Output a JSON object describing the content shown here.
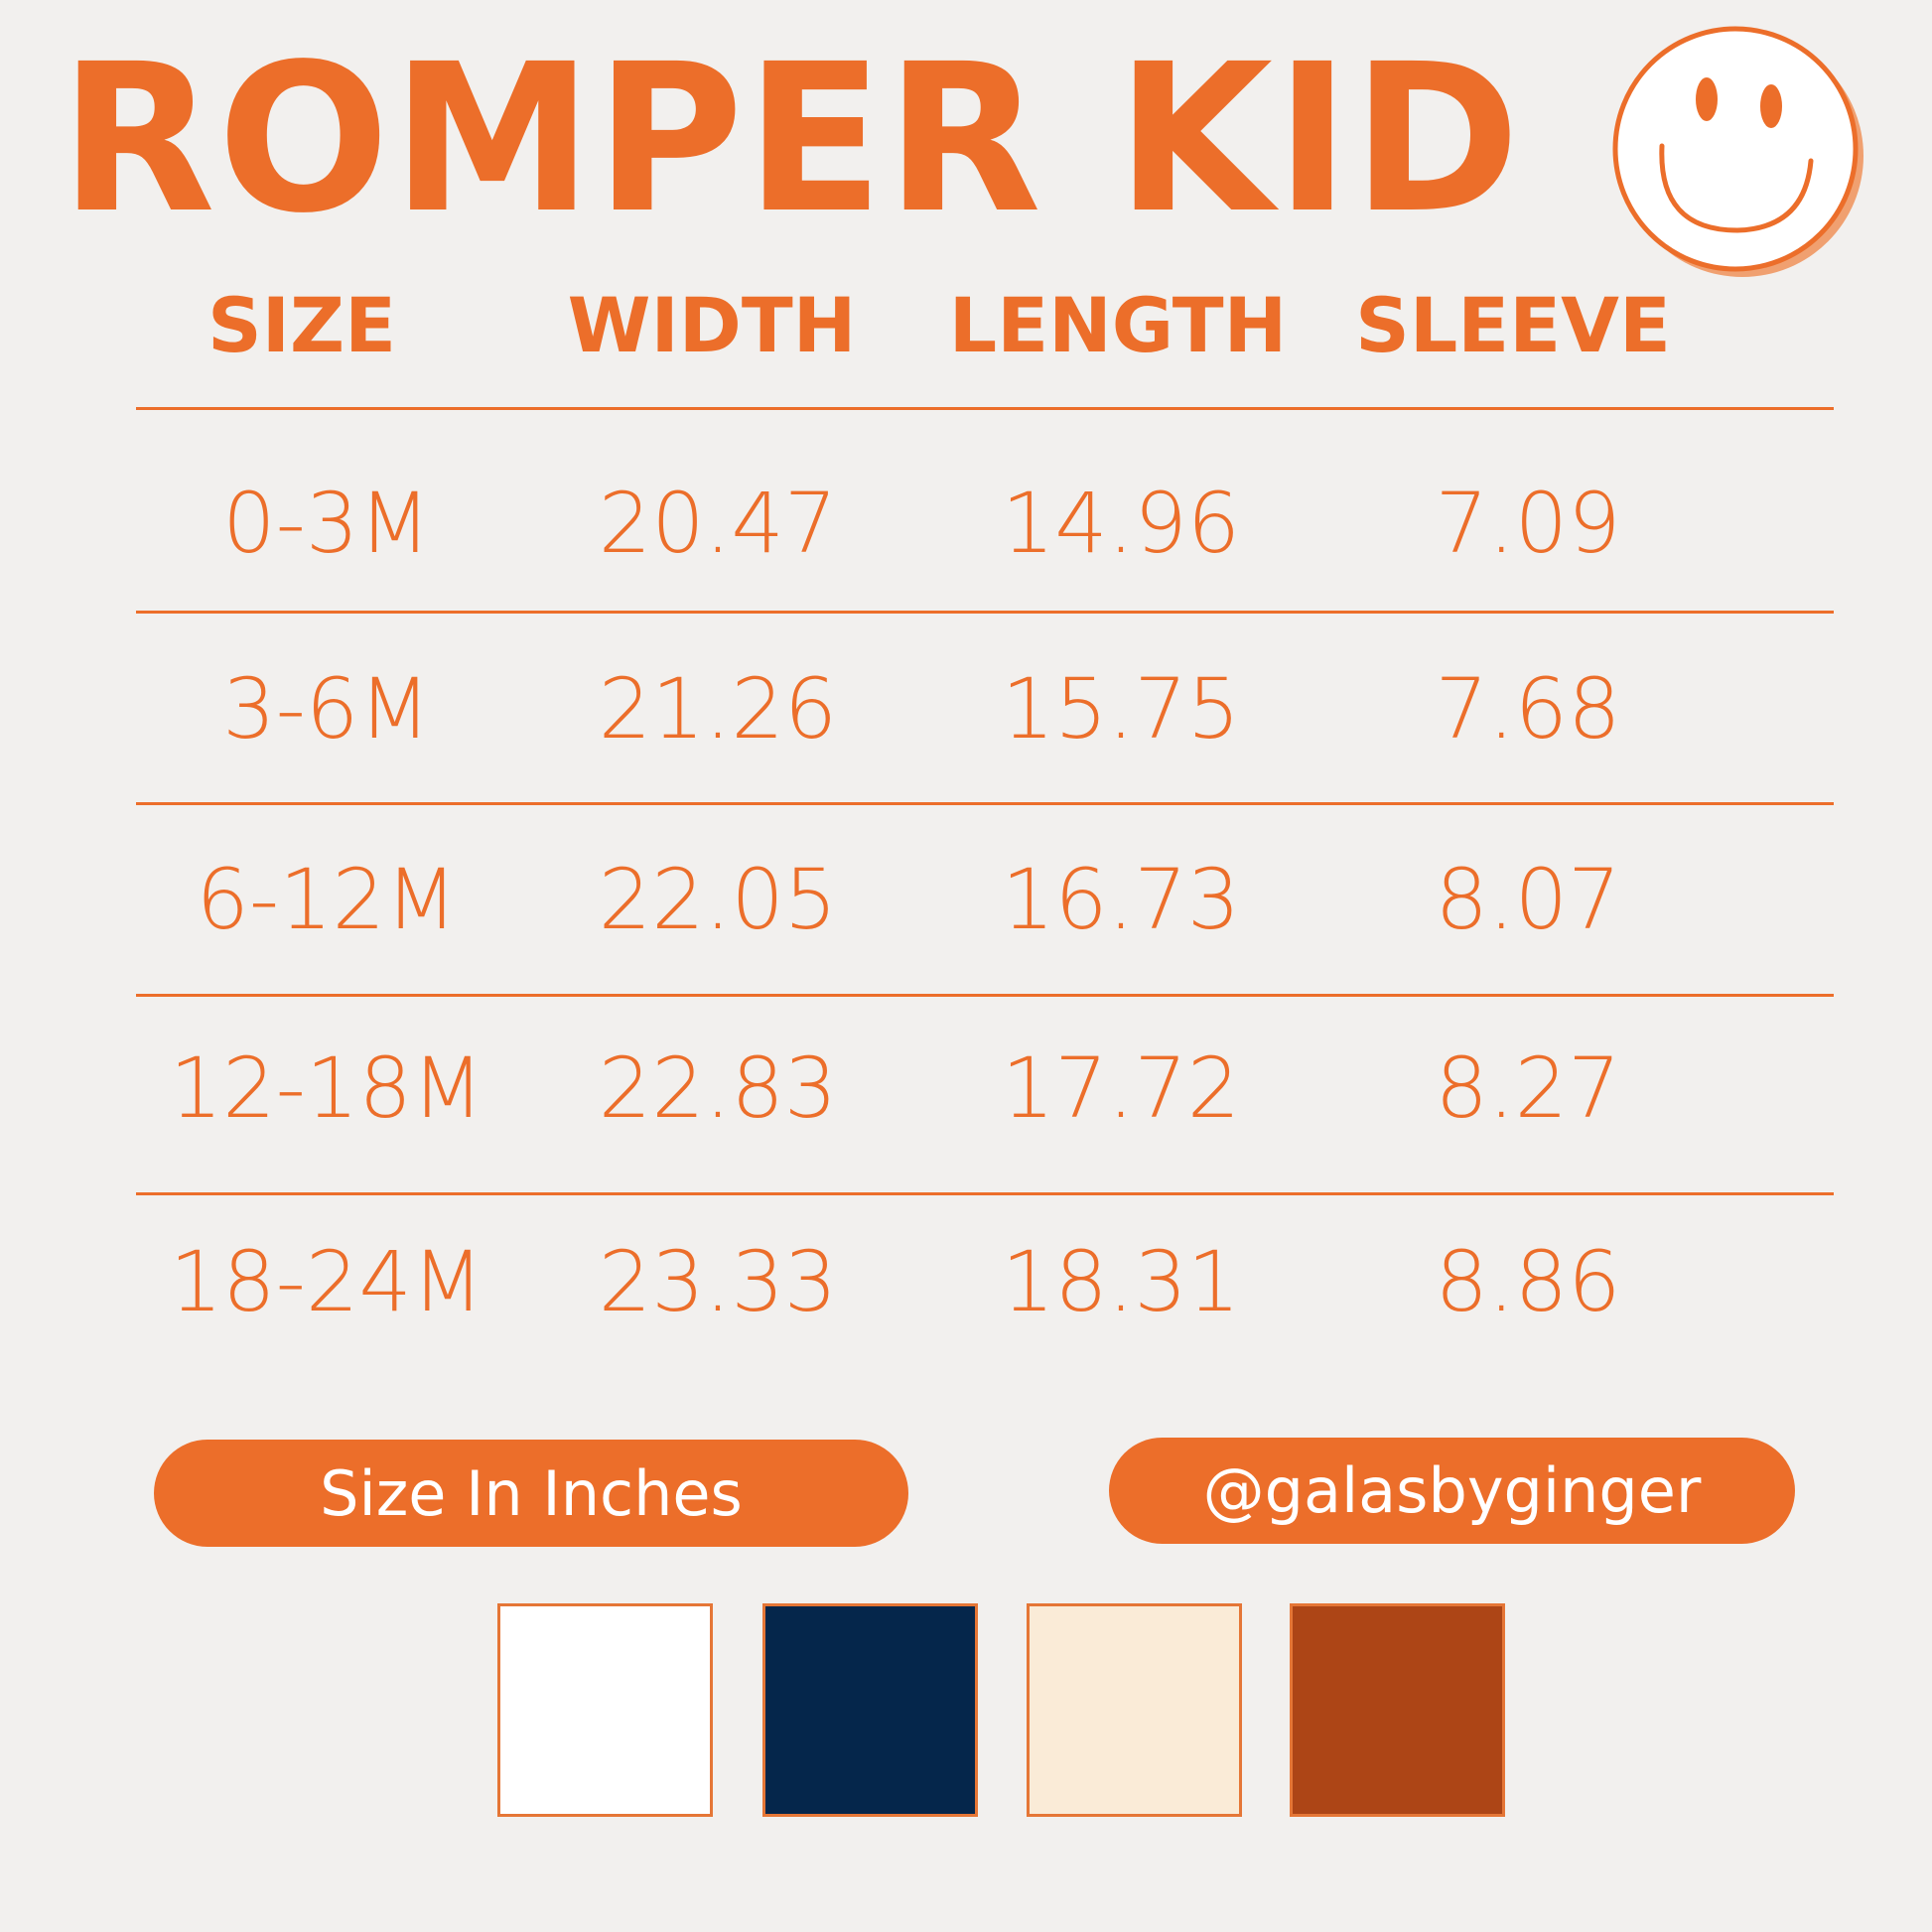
{
  "title": "ROMPER KID",
  "headers": [
    "SIZE",
    "WIDTH",
    "LENGTH",
    "SLEEVE"
  ],
  "rows": [
    [
      "0-3M",
      "20.47",
      "14.96",
      "7.09"
    ],
    [
      "3-6M",
      "21.26",
      "15.75",
      "7.68"
    ],
    [
      "6-12M",
      "22.05",
      "16.73",
      "8.07"
    ],
    [
      "12-18M",
      "22.83",
      "17.72",
      "8.27"
    ],
    [
      "18-24M",
      "23.33",
      "18.31",
      "8.86"
    ]
  ],
  "unit_label": "Size In Inches",
  "handle": "@galasbyginger",
  "icon": "smiley-face-icon",
  "accent_color": "#ec6e2a",
  "swatches": [
    "#ffffff",
    "#05264b",
    "#faebd7",
    "#ad4516"
  ]
}
